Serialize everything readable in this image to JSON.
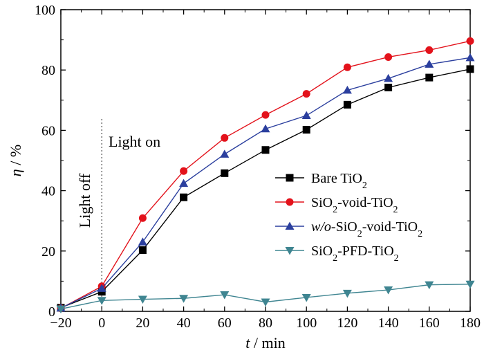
{
  "chart_data": {
    "type": "line",
    "x": [
      -20,
      0,
      20,
      40,
      60,
      80,
      100,
      120,
      140,
      160,
      180
    ],
    "xlim": [
      -20,
      180
    ],
    "ylim": [
      0,
      100
    ],
    "xticks": [
      -20,
      0,
      20,
      40,
      60,
      80,
      100,
      120,
      140,
      160,
      180
    ],
    "yticks": [
      0,
      20,
      40,
      60,
      80,
      100
    ],
    "xtick_labels": [
      "−20",
      "0",
      "20",
      "40",
      "60",
      "80",
      "100",
      "120",
      "140",
      "160",
      "180"
    ],
    "ytick_labels": [
      "0",
      "20",
      "40",
      "60",
      "80",
      "100"
    ],
    "xlabel": {
      "var": "t",
      "unit": " / min"
    },
    "ylabel": {
      "var": "η",
      "unit": " / %"
    },
    "grid": false,
    "legend_position": "center-right",
    "annotations": {
      "light_on": "Light on",
      "light_off": "Light off",
      "divider_x": 0
    },
    "series": [
      {
        "name": "Bare TiO2",
        "legend": {
          "italic": "",
          "parts": [
            {
              "t": "Bare TiO",
              "sub": "2"
            }
          ]
        },
        "color": "#000000",
        "marker": "square",
        "values": [
          1.2,
          6.5,
          20.3,
          37.8,
          45.8,
          53.5,
          60.2,
          68.5,
          74.2,
          77.5,
          80.3
        ]
      },
      {
        "name": "SiO2-void-TiO2",
        "legend": {
          "italic": "",
          "parts": [
            {
              "t": "SiO",
              "sub": "2"
            },
            {
              "t": "-void-TiO",
              "sub": "2"
            }
          ]
        },
        "color": "#e3121b",
        "marker": "circle",
        "values": [
          1.0,
          8.3,
          30.9,
          46.5,
          57.5,
          65.1,
          72.1,
          80.9,
          84.3,
          86.6,
          89.6
        ]
      },
      {
        "name": "w/o-SiO2-void-TiO2",
        "legend": {
          "italic": "w/o",
          "parts": [
            {
              "t": "-SiO",
              "sub": "2"
            },
            {
              "t": "-void-TiO",
              "sub": "2"
            }
          ]
        },
        "color": "#2b3f9e",
        "marker": "triangle-up",
        "values": [
          1.1,
          7.6,
          23.0,
          42.4,
          52.1,
          60.5,
          64.9,
          73.3,
          77.2,
          81.9,
          84.1
        ]
      },
      {
        "name": "SiO2-PFD-TiO2",
        "legend": {
          "italic": "",
          "parts": [
            {
              "t": "SiO",
              "sub": "2"
            },
            {
              "t": "-PFD-TiO",
              "sub": "2"
            }
          ]
        },
        "color": "#3f8591",
        "marker": "triangle-down",
        "values": [
          0.8,
          3.6,
          4.0,
          4.3,
          5.5,
          3.1,
          4.6,
          6.0,
          7.1,
          8.8,
          9.0
        ]
      }
    ]
  }
}
